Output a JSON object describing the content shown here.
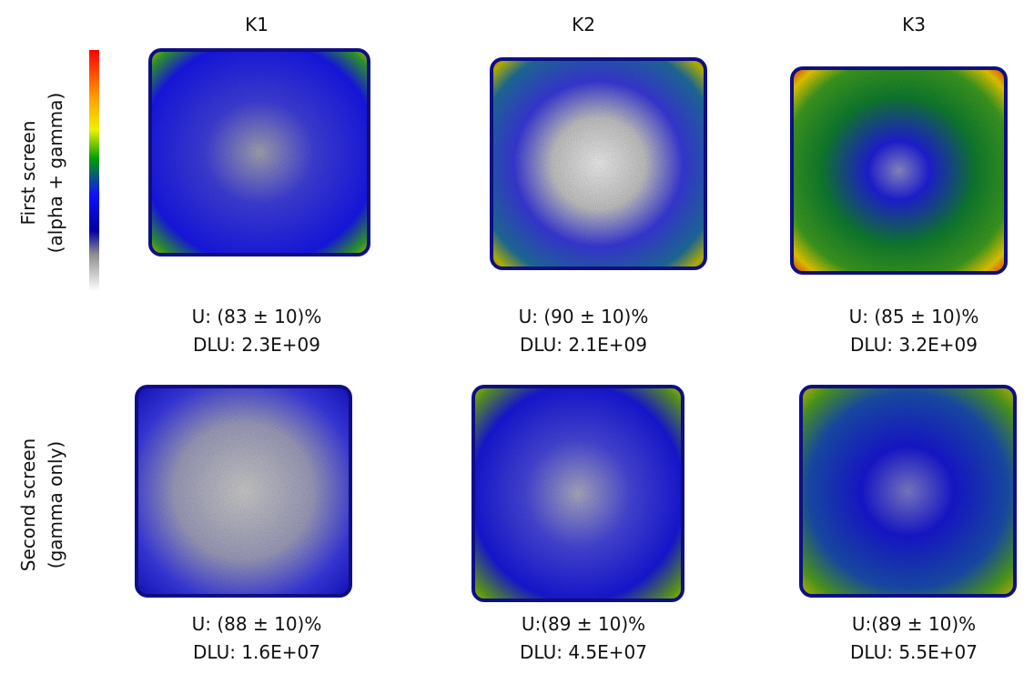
{
  "columns": [
    "K1",
    "K2",
    "K3"
  ],
  "rows": [
    {
      "label": "First screen",
      "sublabel": "(alpha + gamma)",
      "cells": [
        {
          "u": "U: (83 ± 10)%",
          "dlu": "DLU: 2.3E+09"
        },
        {
          "u": "U: (90 ± 10)%",
          "dlu": "DLU: 2.1E+09"
        },
        {
          "u": "U: (85 ± 10)%",
          "dlu": "DLU: 3.2E+09"
        }
      ]
    },
    {
      "label": "Second screen",
      "sublabel": "(gamma only)",
      "cells": [
        {
          "u": "U: (88 ± 10)%",
          "dlu": "DLU: 1.6E+07"
        },
        {
          "u": "U:(89 ± 10)%",
          "dlu": "DLU: 4.5E+07"
        },
        {
          "u": "U:(89 ± 10)%",
          "dlu": "DLU: 5.5E+07"
        }
      ]
    }
  ]
}
